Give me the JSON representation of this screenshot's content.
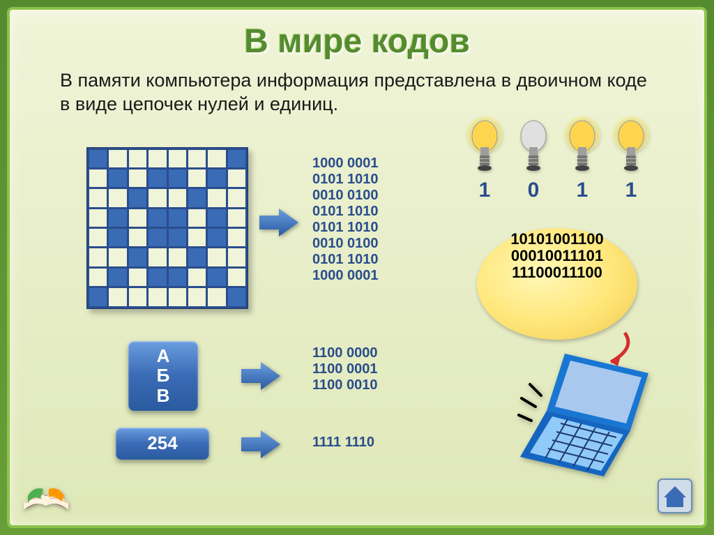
{
  "title": "В мире кодов",
  "subtitle": "В памяти компьютера информация представлена в двоичном коде в виде цепочек нулей и единиц.",
  "grid_pattern": [
    [
      1,
      0,
      0,
      0,
      0,
      0,
      0,
      1
    ],
    [
      0,
      1,
      0,
      1,
      1,
      0,
      1,
      0
    ],
    [
      0,
      0,
      1,
      0,
      0,
      1,
      0,
      0
    ],
    [
      0,
      1,
      0,
      1,
      1,
      0,
      1,
      0
    ],
    [
      0,
      1,
      0,
      1,
      1,
      0,
      1,
      0
    ],
    [
      0,
      0,
      1,
      0,
      0,
      1,
      0,
      0
    ],
    [
      0,
      1,
      0,
      1,
      1,
      0,
      1,
      0
    ],
    [
      1,
      0,
      0,
      0,
      0,
      0,
      0,
      1
    ]
  ],
  "bin_block1": "1000 0001\n0101 1010\n0010 0100\n0101 1010\n0101 1010\n0010 0100\n0101 1010\n1000 0001",
  "bin_block2": "1100 0000\n1100 0001\n1100 0010",
  "bin_block3": "1111 1110",
  "abv_letters": [
    "А",
    "Б",
    "В"
  ],
  "number_box": "254",
  "bulbs": [
    {
      "on": true,
      "label": "1"
    },
    {
      "on": false,
      "label": "0"
    },
    {
      "on": true,
      "label": "1"
    },
    {
      "on": true,
      "label": "1"
    }
  ],
  "thought_lines": [
    "10101001100",
    "00010011101",
    "11100011100"
  ],
  "colors": {
    "title": "#558b2f",
    "binary": "#2a4d8c",
    "pill_top": "#6a9de0",
    "pill_bot": "#2a5a9f",
    "slide_bg_top": "#f0f4d8",
    "slide_bg_bot": "#dfe8b8",
    "frame": "#8bc34a",
    "bulb_on": "#ffd54f",
    "bulb_off": "#e0e0e0"
  }
}
